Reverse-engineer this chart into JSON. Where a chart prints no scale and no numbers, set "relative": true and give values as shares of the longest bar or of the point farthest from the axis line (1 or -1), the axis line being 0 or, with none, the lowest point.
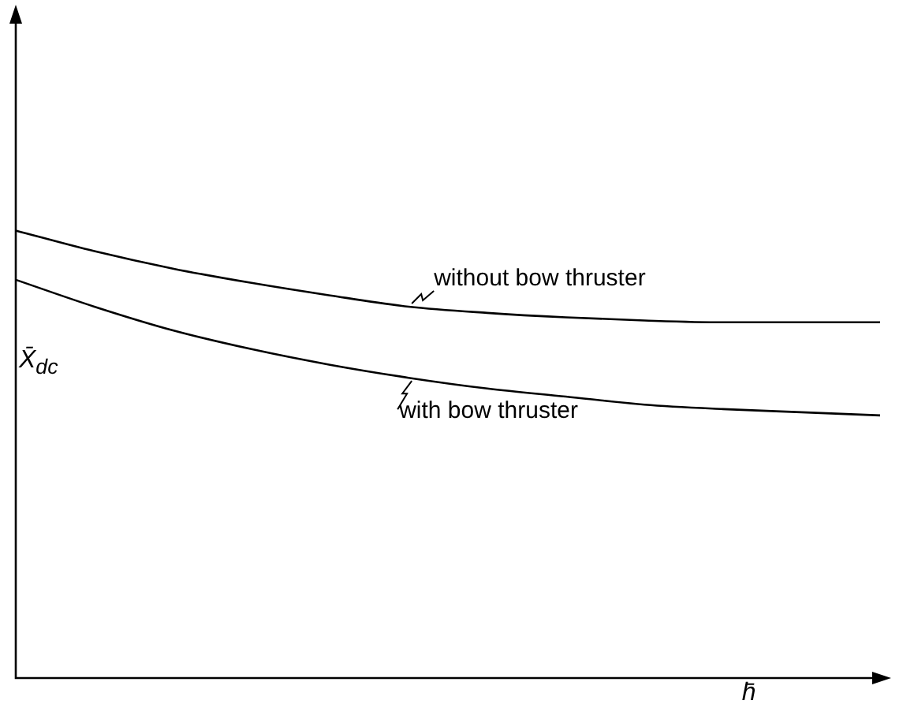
{
  "chart_data": {
    "type": "line",
    "relative": true,
    "xlabel": "h̄",
    "ylabel": "X̄$_{dc}$",
    "grid": false,
    "legend": false,
    "marker": "none",
    "line_style": "solid",
    "categories": [
      null,
      null,
      null,
      null,
      null,
      null,
      null,
      null,
      null,
      null,
      null,
      null
    ],
    "series": [
      {
        "name": "without bow thruster",
        "color": "#000000",
        "values": [
          1,
          0.954,
          0.915,
          0.883,
          0.855,
          0.83,
          0.816,
          0.806,
          0.799,
          0.795,
          0.795,
          0.795
        ]
      },
      {
        "name": "with bow thruster",
        "color": "#000000",
        "values": [
          0.89,
          0.83,
          0.777,
          0.735,
          0.7,
          0.671,
          0.647,
          0.629,
          0.611,
          0.601,
          0.594,
          0.587
        ]
      }
    ]
  }
}
